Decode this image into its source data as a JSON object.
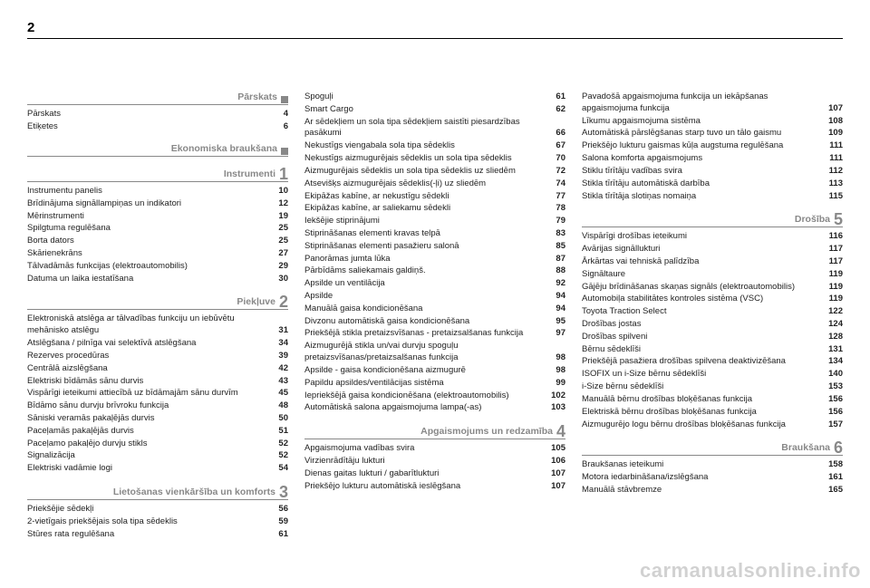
{
  "pageNumber": "2",
  "watermark": "carmanualsonline.info",
  "columns": [
    {
      "sections": [
        {
          "title": "Pārskats",
          "markerType": "square",
          "entries": [
            {
              "label": "Pārskats",
              "page": "4"
            },
            {
              "label": "Etiķetes",
              "page": "6"
            }
          ]
        },
        {
          "title": "Ekonomiska braukšana",
          "markerType": "square",
          "entries": []
        },
        {
          "title": "Instrumenti",
          "markerType": "number",
          "marker": "1",
          "entries": [
            {
              "label": "Instrumentu panelis",
              "page": "10"
            },
            {
              "label": "Brīdinājuma signāllampiņas un indikatori",
              "page": "12"
            },
            {
              "label": "Mērinstrumenti",
              "page": "19"
            },
            {
              "label": "Spilgtuma regulēšana",
              "page": "25"
            },
            {
              "label": "Borta dators",
              "page": "25"
            },
            {
              "label": "Skārienekrāns",
              "page": "27"
            },
            {
              "label": "Tālvadāmās funkcijas (elektroautomobilis)",
              "page": "29"
            },
            {
              "label": "Datuma un laika iestatīšana",
              "page": "30"
            }
          ]
        },
        {
          "title": "Piekļuve",
          "markerType": "number",
          "marker": "2",
          "entries": [
            {
              "label": "Elektroniskā atslēga ar tālvadības funkciju un iebūvētu mehānisko atslēgu",
              "page": "31"
            },
            {
              "label": "Atslēgšana / pilnīga vai selektīvā atslēgšana",
              "page": "34"
            },
            {
              "label": "Rezerves procedūras",
              "page": "39"
            },
            {
              "label": "Centrālā aizslēgšana",
              "page": "42"
            },
            {
              "label": "Elektriski bīdāmās sānu durvis",
              "page": "43"
            },
            {
              "label": "Vispārīgi ieteikumi attiecībā uz bīdāmajām sānu durvīm",
              "page": "45"
            },
            {
              "label": "Bīdāmo sānu durvju brīvroku funkcija",
              "page": "48"
            },
            {
              "label": "Sāniski veramās pakaļējās durvis",
              "page": "50"
            },
            {
              "label": "Paceļamās pakaļējās durvis",
              "page": "51"
            },
            {
              "label": "Paceļamo pakaļējo durvju stikls",
              "page": "52"
            },
            {
              "label": "Signalizācija",
              "page": "52"
            },
            {
              "label": "Elektriski vadāmie logi",
              "page": "54"
            }
          ]
        },
        {
          "title": "Lietošanas vienkāršība un komforts",
          "markerType": "number",
          "marker": "3",
          "entries": [
            {
              "label": "Priekšējie sēdekļi",
              "page": "56"
            },
            {
              "label": "2-vietīgais priekšējais sola tipa sēdeklis",
              "page": "59"
            },
            {
              "label": "Stūres rata regulēšana",
              "page": "61"
            }
          ]
        }
      ]
    },
    {
      "sections": [
        {
          "noHead": true,
          "entries": [
            {
              "label": "Spoguļi",
              "page": "61"
            },
            {
              "label": "Smart Cargo",
              "page": "62"
            },
            {
              "label": "Ar sēdekļiem un sola tipa sēdekļiem saistīti piesardzības pasākumi",
              "page": "66"
            },
            {
              "label": "Nekustīgs viengabala sola tipa sēdeklis",
              "page": "67"
            },
            {
              "label": "Nekustīgs aizmugurējais sēdeklis un sola tipa sēdeklis",
              "page": "70"
            },
            {
              "label": "Aizmugurējais sēdeklis un sola tipa sēdeklis uz sliedēm",
              "page": "72"
            },
            {
              "label": "Atsevišķs aizmugurējais sēdeklis(-ļi) uz sliedēm",
              "page": "74"
            },
            {
              "label": "Ekipāžas kabīne, ar nekustīgu sēdekli",
              "page": "77"
            },
            {
              "label": "Ekipāžas kabīne, ar saliekamu sēdekli",
              "page": "78"
            },
            {
              "label": "Iekšējie stiprinājumi",
              "page": "79"
            },
            {
              "label": "Stiprināšanas elementi kravas telpā",
              "page": "83"
            },
            {
              "label": "Stiprināšanas elementi pasažieru salonā",
              "page": "85"
            },
            {
              "label": "Panorāmas jumta lūka",
              "page": "87"
            },
            {
              "label": "Pārbīdāms saliekamais galdiņš.",
              "page": "88"
            },
            {
              "label": "Apsilde un ventilācija",
              "page": "92"
            },
            {
              "label": "Apsilde",
              "page": "94"
            },
            {
              "label": "Manuālā gaisa kondicionēšana",
              "page": "94"
            },
            {
              "label": "Divzonu automātiskā gaisa kondicionēšana",
              "page": "95"
            },
            {
              "label": "Priekšējā stikla pretaizsvīšanas - pretaizsalšanas funkcija",
              "page": "97"
            },
            {
              "label": "Aizmugurējā stikla un/vai durvju spoguļu pretaizsvīšanas/pretaizsalšanas funkcija",
              "page": "98"
            },
            {
              "label": "Apsilde - gaisa kondicionēšana aizmugurē",
              "page": "98"
            },
            {
              "label": "Papildu apsildes/ventilācijas sistēma",
              "page": "99"
            },
            {
              "label": "Iepriekšējā gaisa kondicionēšana (elektroautomobilis)",
              "page": "102"
            },
            {
              "label": "Automātiskā salona apgaismojuma lampa(-as)",
              "page": "103"
            }
          ]
        },
        {
          "title": "Apgaismojums un redzamība",
          "markerType": "number",
          "marker": "4",
          "entries": [
            {
              "label": "Apgaismojuma vadības svira",
              "page": "105"
            },
            {
              "label": "Virzienrādītāju lukturi",
              "page": "106"
            },
            {
              "label": "Dienas gaitas lukturi / gabarītlukturi",
              "page": "107"
            },
            {
              "label": "Priekšējo lukturu automātiskā ieslēgšana",
              "page": "107"
            }
          ]
        }
      ]
    },
    {
      "sections": [
        {
          "noHead": true,
          "entries": [
            {
              "label": "Pavadošā apgaismojuma funkcija un iekāpšanas apgaismojuma funkcija",
              "page": "107"
            },
            {
              "label": "Līkumu apgaismojuma sistēma",
              "page": "108"
            },
            {
              "label": "Automātiskā pārslēgšanas starp tuvo un tālo gaismu",
              "page": "109"
            },
            {
              "label": "Priekšējo lukturu gaismas kūļa augstuma regulēšana",
              "page": "111"
            },
            {
              "label": "Salona komforta apgaismojums",
              "page": "111"
            },
            {
              "label": "Stiklu tīrītāju vadības svira",
              "page": "112"
            },
            {
              "label": "Stikla tīrītāju automātiskā darbība",
              "page": "113"
            },
            {
              "label": "Stikla tīrītāja slotiņas nomaiņa",
              "page": "115"
            }
          ]
        },
        {
          "title": "Drošība",
          "markerType": "number",
          "marker": "5",
          "entries": [
            {
              "label": "Vispārīgi drošības ieteikumi",
              "page": "116"
            },
            {
              "label": "Avārijas signāllukturi",
              "page": "117"
            },
            {
              "label": "Ārkārtas vai tehniskā palīdzība",
              "page": "117"
            },
            {
              "label": "Signāltaure",
              "page": "119"
            },
            {
              "label": "Gājēju brīdināšanas skaņas signāls (elektroautomobilis)",
              "page": "119"
            },
            {
              "label": "Automobiļa stabilitātes kontroles sistēma (VSC)",
              "page": "119"
            },
            {
              "label": "Toyota Traction Select",
              "page": "122"
            },
            {
              "label": "Drošības jostas",
              "page": "124"
            },
            {
              "label": "Drošības spilveni",
              "page": "128"
            },
            {
              "label": "Bērnu sēdeklīši",
              "page": "131"
            },
            {
              "label": "Priekšējā pasažiera drošības spilvena deaktivizēšana",
              "page": "134"
            },
            {
              "label": "ISOFIX un i-Size bērnu sēdeklīši",
              "page": "140"
            },
            {
              "label": "i-Size bērnu sēdeklīši",
              "page": "153"
            },
            {
              "label": "Manuālā bērnu drošības bloķēšanas funkcija",
              "page": "156"
            },
            {
              "label": "Elektriskā bērnu drošības bloķēšanas funkcija",
              "page": "156"
            },
            {
              "label": "Aizmugurējo logu bērnu drošības bloķēšanas funkcija",
              "page": "157"
            }
          ]
        },
        {
          "title": "Braukšana",
          "markerType": "number",
          "marker": "6",
          "entries": [
            {
              "label": "Braukšanas ieteikumi",
              "page": "158"
            },
            {
              "label": "Motora iedarbināšana/izslēgšana",
              "page": "161"
            },
            {
              "label": "Manuālā stāvbremze",
              "page": "165"
            }
          ]
        }
      ]
    }
  ]
}
